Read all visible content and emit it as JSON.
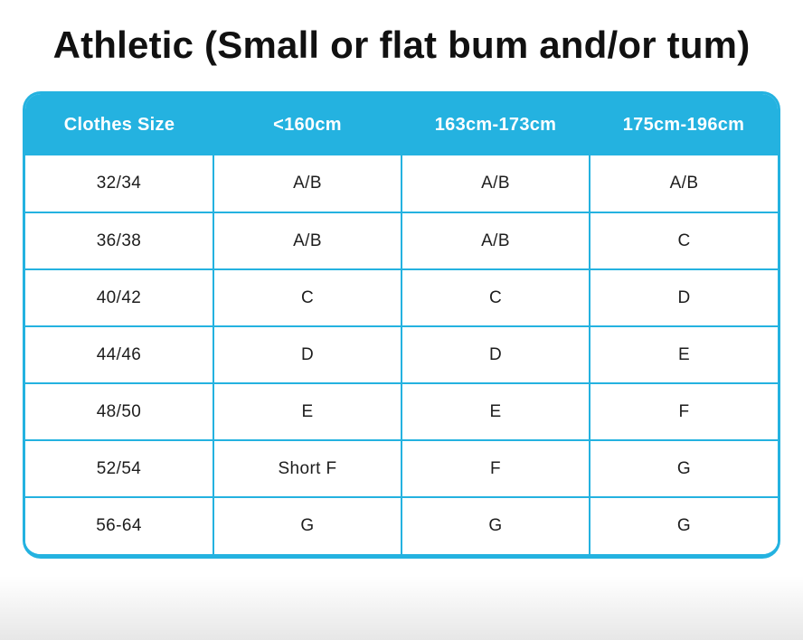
{
  "page": {
    "title": "Athletic (Small or flat bum and/or tum)"
  },
  "table": {
    "headers": [
      "Clothes Size",
      "<160cm",
      "163cm-173cm",
      "175cm-196cm"
    ],
    "rows": [
      [
        "32/34",
        "A/B",
        "A/B",
        "A/B"
      ],
      [
        "36/38",
        "A/B",
        "A/B",
        "C"
      ],
      [
        "40/42",
        "C",
        "C",
        "D"
      ],
      [
        "44/46",
        "D",
        "D",
        "E"
      ],
      [
        "48/50",
        "E",
        "E",
        "F"
      ],
      [
        "52/54",
        "Short F",
        "F",
        "G"
      ],
      [
        "56-64",
        "G",
        "G",
        "G"
      ]
    ]
  },
  "colors": {
    "accent": "#24b2e0",
    "header_text": "#ffffff",
    "body_text": "#1d1d1d",
    "title_text": "#111111"
  },
  "chart_data": {
    "type": "table",
    "title": "Athletic (Small or flat bum and/or tum)",
    "columns": [
      "Clothes Size",
      "<160cm",
      "163cm-173cm",
      "175cm-196cm"
    ],
    "rows": [
      [
        "32/34",
        "A/B",
        "A/B",
        "A/B"
      ],
      [
        "36/38",
        "A/B",
        "A/B",
        "C"
      ],
      [
        "40/42",
        "C",
        "C",
        "D"
      ],
      [
        "44/46",
        "D",
        "D",
        "E"
      ],
      [
        "48/50",
        "E",
        "E",
        "F"
      ],
      [
        "52/54",
        "Short F",
        "F",
        "G"
      ],
      [
        "56-64",
        "G",
        "G",
        "G"
      ]
    ],
    "layout": {
      "header_background": "#24b2e0",
      "grid": "on",
      "equal_column_widths": true
    }
  }
}
